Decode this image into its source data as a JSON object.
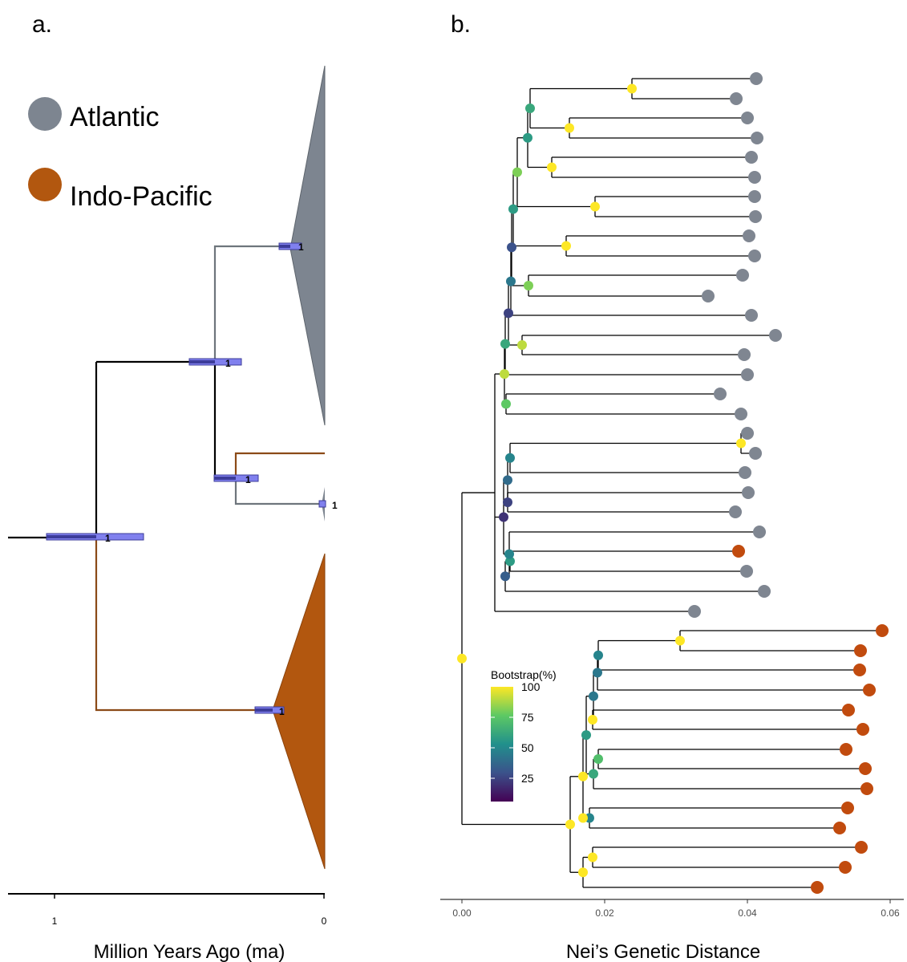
{
  "panel_a": {
    "label": "a.",
    "legend": [
      {
        "label": "Atlantic",
        "color": "#7d8590"
      },
      {
        "label": "Indo-Pacific",
        "color": "#b2570f"
      }
    ],
    "axis": {
      "title": "Million Years Ago (ma)",
      "tick_labels": [
        "1",
        "0"
      ]
    },
    "node_support_labels": [
      "1",
      "1",
      "1",
      "1",
      "1"
    ],
    "colors": {
      "atlantic": "#7d8590",
      "indo_pacific": "#b2570f",
      "hpd_bar": "#8080ee",
      "hpd_bar_dark": "#3c3c9a"
    }
  },
  "panel_b": {
    "label": "b.",
    "axis": {
      "title": "Nei’s Genetic Distance",
      "tick_labels": [
        "0.00",
        "0.02",
        "0.04",
        "0.06"
      ],
      "range": [
        0,
        0.06
      ]
    },
    "colorbar": {
      "title": "Bootstrap(%)",
      "tick_labels": [
        "100",
        "75",
        "50",
        "25"
      ]
    },
    "colors": {
      "atlantic_tip": "#7f8691",
      "indo_pacific_tip": "#c14b0e",
      "viridis": [
        "#440154",
        "#3b528b",
        "#21908c",
        "#5dc963",
        "#fde725"
      ]
    }
  }
}
